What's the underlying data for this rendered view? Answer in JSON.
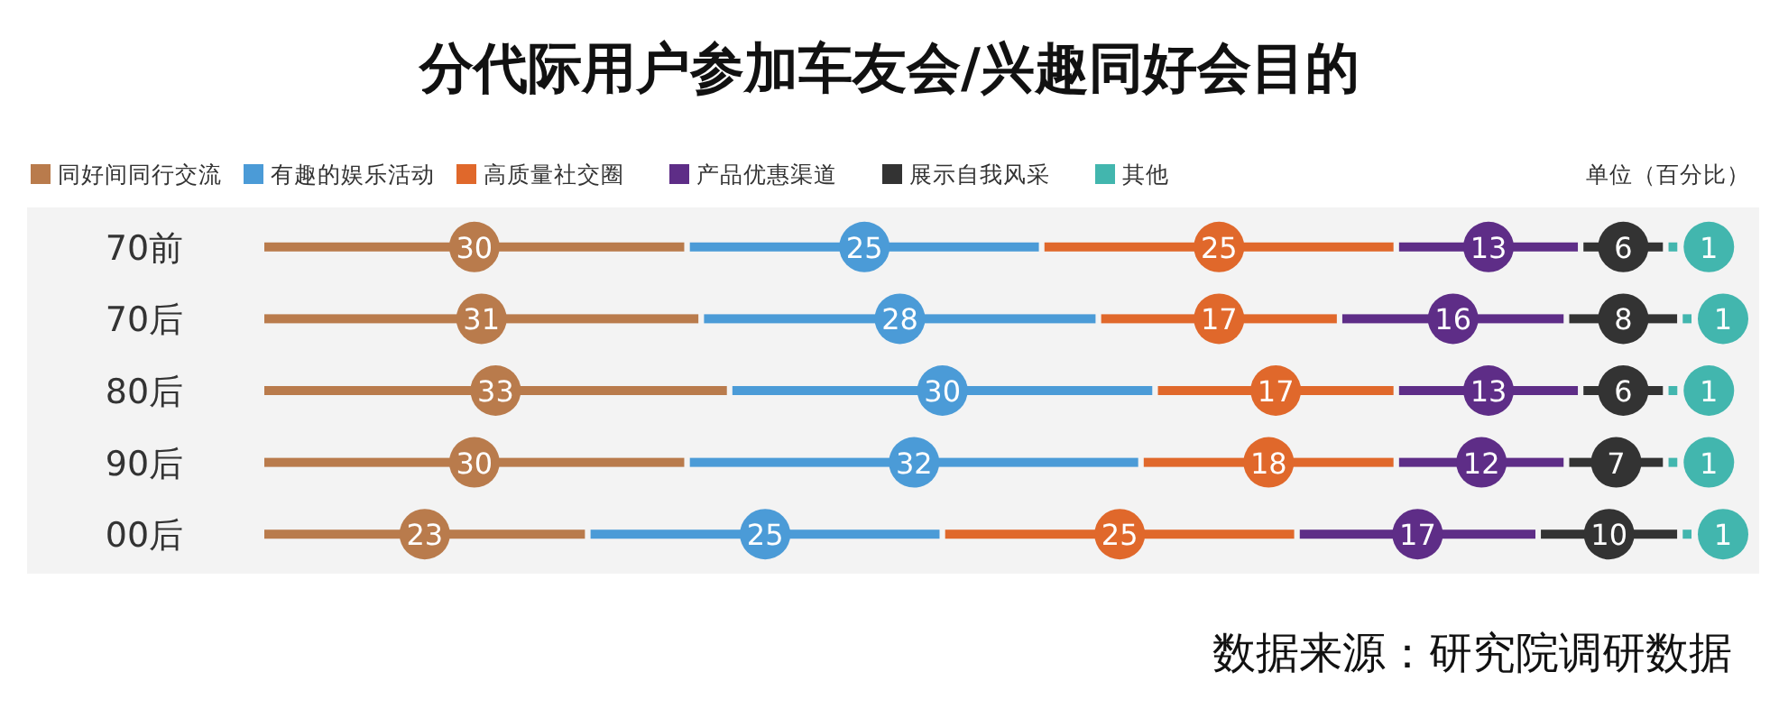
{
  "chart_data": {
    "type": "bar",
    "orientation": "horizontal",
    "stacked": true,
    "title": "分代际用户参加车友会/兴趣同好会目的",
    "categories": [
      "70前",
      "70后",
      "80后",
      "90后",
      "00后"
    ],
    "series": [
      {
        "name": "同好间同行交流",
        "color": "#b97b4c",
        "values": [
          30,
          31,
          33,
          30,
          23
        ]
      },
      {
        "name": "有趣的娱乐活动",
        "color": "#4b9bd7",
        "values": [
          25,
          28,
          30,
          32,
          25
        ]
      },
      {
        "name": "高质量社交圈",
        "color": "#e0682b",
        "values": [
          25,
          17,
          17,
          18,
          25
        ]
      },
      {
        "name": "产品优惠渠道",
        "color": "#5e2d87",
        "values": [
          13,
          16,
          13,
          12,
          17
        ]
      },
      {
        "name": "展示自我风采",
        "color": "#333333",
        "values": [
          6,
          8,
          6,
          7,
          10
        ]
      },
      {
        "name": "其他",
        "color": "#42b6ae",
        "values": [
          1,
          1,
          1,
          1,
          1
        ]
      }
    ],
    "data_labels": true,
    "legend": "top",
    "tick_labels": "y",
    "grid": false,
    "annotations": [
      "单位（百分比）",
      "数据来源：研究院调研数据"
    ]
  }
}
